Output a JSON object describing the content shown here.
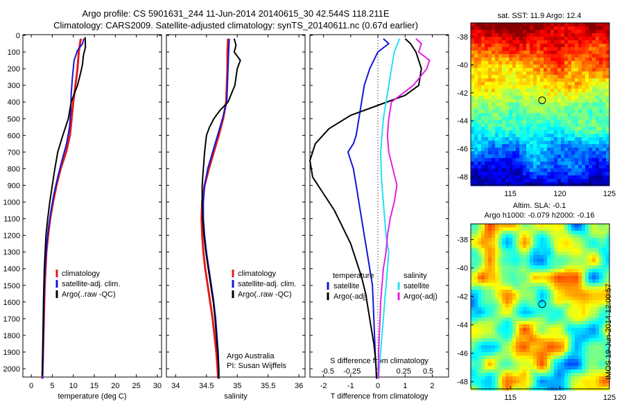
{
  "titles": {
    "line1": "Argo profile: CS 5901631_244 11-Jun-2014 20140615_30 42.544S 118.211E",
    "line2": "Climatology: CARS2009. Satellite-adjusted climatology: synTS_20140611.nc (0.67d earlier)"
  },
  "side_stamp": "IMOS 19-Jun-2014 12:00:57",
  "colors": {
    "red": "#e41a1c",
    "blue": "#1414d8",
    "black": "#000000",
    "cyan": "#22e0f0",
    "magenta": "#e020e0"
  },
  "chart_data": [
    {
      "type": "line",
      "panel": "temperature",
      "xlabel": "temperature (deg C)",
      "ylabel": "",
      "xlim": [
        -2,
        31
      ],
      "ylim": [
        2080,
        0
      ],
      "xticks": [
        0,
        5,
        10,
        15,
        20,
        25,
        30
      ],
      "yticks": [
        0,
        100,
        200,
        300,
        400,
        500,
        600,
        700,
        800,
        900,
        1000,
        1100,
        1200,
        1300,
        1400,
        1500,
        1600,
        1700,
        1800,
        1900,
        2000
      ],
      "legend": [
        "climatology",
        "satellite-adj. clim.",
        "Argo(..raw -QC)"
      ],
      "series": [
        {
          "name": "climatology",
          "color": "red",
          "points": [
            [
              11.8,
              20
            ],
            [
              11.6,
              50
            ],
            [
              11.3,
              100
            ],
            [
              11.0,
              200
            ],
            [
              10.5,
              300
            ],
            [
              10.0,
              400
            ],
            [
              9.6,
              500
            ],
            [
              9.2,
              600
            ],
            [
              8.3,
              700
            ],
            [
              7.0,
              800
            ],
            [
              6.0,
              900
            ],
            [
              5.2,
              1000
            ],
            [
              4.5,
              1100
            ],
            [
              4.0,
              1200
            ],
            [
              3.6,
              1300
            ],
            [
              3.4,
              1400
            ],
            [
              3.2,
              1500
            ],
            [
              3.1,
              1600
            ],
            [
              3.0,
              1700
            ],
            [
              2.9,
              1800
            ],
            [
              2.8,
              1900
            ],
            [
              2.7,
              2000
            ],
            [
              2.6,
              2060
            ]
          ]
        },
        {
          "name": "satellite-adj. clim.",
          "color": "blue",
          "points": [
            [
              12.5,
              20
            ],
            [
              12.2,
              50
            ],
            [
              11.0,
              90
            ],
            [
              10.2,
              150
            ],
            [
              9.8,
              250
            ],
            [
              9.5,
              350
            ],
            [
              9.4,
              450
            ],
            [
              9.1,
              550
            ],
            [
              8.4,
              650
            ],
            [
              7.3,
              750
            ],
            [
              6.3,
              850
            ],
            [
              5.4,
              950
            ],
            [
              4.7,
              1050
            ],
            [
              4.1,
              1150
            ],
            [
              3.7,
              1250
            ],
            [
              3.4,
              1350
            ],
            [
              3.2,
              1450
            ],
            [
              3.0,
              1600
            ],
            [
              2.9,
              1750
            ],
            [
              2.8,
              1900
            ],
            [
              2.7,
              2060
            ]
          ]
        },
        {
          "name": "Argo(..raw -QC)",
          "color": "black",
          "points": [
            [
              12.8,
              10
            ],
            [
              12.9,
              70
            ],
            [
              12.4,
              120
            ],
            [
              12.2,
              170
            ],
            [
              11.8,
              220
            ],
            [
              11.0,
              300
            ],
            [
              9.5,
              400
            ],
            [
              8.8,
              500
            ],
            [
              7.5,
              600
            ],
            [
              6.3,
              700
            ],
            [
              5.6,
              800
            ],
            [
              5.0,
              900
            ],
            [
              4.4,
              1000
            ],
            [
              3.9,
              1100
            ],
            [
              3.5,
              1200
            ],
            [
              3.3,
              1300
            ],
            [
              3.1,
              1400
            ],
            [
              3.0,
              1500
            ],
            [
              2.9,
              1600
            ],
            [
              2.8,
              1750
            ],
            [
              2.7,
              1900
            ],
            [
              2.6,
              2040
            ]
          ]
        }
      ]
    },
    {
      "type": "line",
      "panel": "salinity",
      "xlabel": "salinity",
      "ylabel": "",
      "xlim": [
        33.85,
        36.1
      ],
      "ylim": [
        2080,
        0
      ],
      "xticks": [
        34,
        34.5,
        35,
        35.5,
        36
      ],
      "legend": [
        "climatology",
        "satellite-adj. clim.",
        "Argo(..raw -QC)"
      ],
      "annotations": [
        "Argo Australia",
        "PI: Susan Wijffels"
      ],
      "series": [
        {
          "name": "climatology",
          "color": "red",
          "points": [
            [
              34.85,
              20
            ],
            [
              34.84,
              100
            ],
            [
              34.84,
              200
            ],
            [
              34.83,
              300
            ],
            [
              34.82,
              400
            ],
            [
              34.77,
              500
            ],
            [
              34.7,
              600
            ],
            [
              34.62,
              700
            ],
            [
              34.54,
              800
            ],
            [
              34.47,
              900
            ],
            [
              34.43,
              1000
            ],
            [
              34.42,
              1100
            ],
            [
              34.43,
              1200
            ],
            [
              34.45,
              1300
            ],
            [
              34.48,
              1400
            ],
            [
              34.52,
              1500
            ],
            [
              34.56,
              1600
            ],
            [
              34.6,
              1700
            ],
            [
              34.63,
              1800
            ],
            [
              34.66,
              1900
            ],
            [
              34.68,
              2000
            ],
            [
              34.69,
              2060
            ]
          ]
        },
        {
          "name": "satellite-adj. clim.",
          "color": "blue",
          "points": [
            [
              34.87,
              20
            ],
            [
              34.86,
              100
            ],
            [
              34.85,
              200
            ],
            [
              34.84,
              300
            ],
            [
              34.83,
              400
            ],
            [
              34.76,
              500
            ],
            [
              34.68,
              600
            ],
            [
              34.6,
              700
            ],
            [
              34.52,
              800
            ],
            [
              34.47,
              900
            ],
            [
              34.45,
              1000
            ],
            [
              34.45,
              1100
            ],
            [
              34.47,
              1200
            ],
            [
              34.5,
              1300
            ],
            [
              34.54,
              1400
            ],
            [
              34.58,
              1500
            ],
            [
              34.62,
              1600
            ],
            [
              34.65,
              1700
            ],
            [
              34.67,
              1800
            ],
            [
              34.69,
              1900
            ],
            [
              34.7,
              2000
            ],
            [
              34.7,
              2060
            ]
          ]
        },
        {
          "name": "Argo(..raw -QC)",
          "color": "black",
          "points": [
            [
              34.95,
              20
            ],
            [
              34.98,
              60
            ],
            [
              34.95,
              100
            ],
            [
              35.05,
              150
            ],
            [
              35.0,
              200
            ],
            [
              34.96,
              300
            ],
            [
              34.85,
              400
            ],
            [
              34.72,
              450
            ],
            [
              34.62,
              500
            ],
            [
              34.55,
              550
            ],
            [
              34.5,
              600
            ],
            [
              34.47,
              700
            ],
            [
              34.45,
              800
            ],
            [
              34.43,
              900
            ],
            [
              34.43,
              1000
            ],
            [
              34.44,
              1100
            ],
            [
              34.46,
              1200
            ],
            [
              34.49,
              1300
            ],
            [
              34.53,
              1400
            ],
            [
              34.57,
              1500
            ],
            [
              34.61,
              1600
            ],
            [
              34.64,
              1700
            ],
            [
              34.66,
              1800
            ],
            [
              34.68,
              1900
            ],
            [
              34.7,
              2000
            ],
            [
              34.7,
              2060
            ]
          ]
        }
      ]
    },
    {
      "type": "line",
      "panel": "difference",
      "xlabel": "T difference from climatology",
      "xlabel_top": "S difference from climatology",
      "xlim": [
        -2.5,
        2.6
      ],
      "ylim": [
        2080,
        0
      ],
      "xticks": [
        -2,
        -1,
        0,
        1,
        2
      ],
      "xticks_s": [
        -0.5,
        -0.25,
        0,
        0.25,
        0.5
      ],
      "legend_left": [
        "temperature",
        "satellite",
        "Argo(-adj)"
      ],
      "legend_right": [
        "salinity",
        "satellite",
        "Argo(-adj)"
      ],
      "series": [
        {
          "name": "temperature satellite",
          "color": "blue",
          "points": [
            [
              0.2,
              20
            ],
            [
              0.4,
              50
            ],
            [
              0.0,
              100
            ],
            [
              -0.3,
              200
            ],
            [
              -0.5,
              300
            ],
            [
              -0.6,
              400
            ],
            [
              -0.7,
              500
            ],
            [
              -0.8,
              600
            ],
            [
              -0.9,
              650
            ],
            [
              -1.1,
              700
            ],
            [
              -1.0,
              750
            ],
            [
              -0.9,
              800
            ],
            [
              -0.8,
              900
            ],
            [
              -0.7,
              1000
            ],
            [
              -0.6,
              1100
            ],
            [
              -0.5,
              1200
            ],
            [
              -0.4,
              1300
            ],
            [
              -0.3,
              1400
            ],
            [
              -0.2,
              1500
            ],
            [
              -0.15,
              1700
            ],
            [
              -0.1,
              1900
            ],
            [
              -0.05,
              2060
            ]
          ]
        },
        {
          "name": "temperature Argo(-adj)",
          "color": "black",
          "points": [
            [
              1.0,
              20
            ],
            [
              1.2,
              50
            ],
            [
              1.4,
              100
            ],
            [
              1.6,
              200
            ],
            [
              1.5,
              300
            ],
            [
              1.0,
              360
            ],
            [
              0.0,
              420
            ],
            [
              -1.0,
              480
            ],
            [
              -1.8,
              560
            ],
            [
              -2.3,
              650
            ],
            [
              -2.5,
              750
            ],
            [
              -2.4,
              850
            ],
            [
              -2.0,
              950
            ],
            [
              -1.6,
              1050
            ],
            [
              -1.3,
              1150
            ],
            [
              -1.0,
              1250
            ],
            [
              -0.8,
              1350
            ],
            [
              -0.6,
              1450
            ],
            [
              -0.45,
              1550
            ],
            [
              -0.35,
              1650
            ],
            [
              -0.25,
              1750
            ],
            [
              -0.15,
              1850
            ],
            [
              -0.08,
              1950
            ],
            [
              -0.05,
              2060
            ]
          ]
        },
        {
          "name": "salinity satellite",
          "color": "cyan",
          "points": [
            [
              0.8,
              20
            ],
            [
              0.6,
              100
            ],
            [
              0.5,
              200
            ],
            [
              0.4,
              300
            ],
            [
              0.3,
              400
            ],
            [
              0.2,
              500
            ],
            [
              0.15,
              600
            ],
            [
              0.1,
              700
            ],
            [
              0.12,
              800
            ],
            [
              0.15,
              900
            ],
            [
              0.2,
              1000
            ],
            [
              0.25,
              1100
            ],
            [
              0.3,
              1200
            ],
            [
              0.4,
              1300
            ],
            [
              0.35,
              1400
            ],
            [
              0.3,
              1500
            ],
            [
              0.25,
              1600
            ],
            [
              0.2,
              1700
            ],
            [
              0.15,
              1800
            ],
            [
              0.1,
              1900
            ],
            [
              0.05,
              2000
            ],
            [
              0.02,
              2060
            ]
          ]
        },
        {
          "name": "salinity Argo(-adj)",
          "color": "magenta",
          "points": [
            [
              1.4,
              20
            ],
            [
              1.6,
              50
            ],
            [
              1.5,
              100
            ],
            [
              1.9,
              150
            ],
            [
              1.8,
              200
            ],
            [
              1.3,
              300
            ],
            [
              0.5,
              400
            ],
            [
              0.4,
              500
            ],
            [
              0.35,
              600
            ],
            [
              0.4,
              700
            ],
            [
              0.55,
              800
            ],
            [
              0.7,
              900
            ],
            [
              0.6,
              1000
            ],
            [
              0.45,
              1100
            ],
            [
              0.35,
              1200
            ],
            [
              0.3,
              1300
            ],
            [
              0.2,
              1400
            ],
            [
              0.15,
              1500
            ],
            [
              0.1,
              1600
            ],
            [
              0.08,
              1700
            ],
            [
              0.05,
              1800
            ],
            [
              0.03,
              1900
            ],
            [
              0.02,
              2060
            ]
          ]
        }
      ]
    },
    {
      "type": "heatmap",
      "panel": "sst-map",
      "title": "sat. SST: 11.9  Argo: 12.4",
      "xlim": [
        111,
        125
      ],
      "ylim": [
        -48.6,
        -37
      ],
      "xticks": [
        115,
        120,
        125
      ],
      "yticks": [
        -38,
        -40,
        -42,
        -44,
        -46,
        -48
      ],
      "marker": {
        "lon": 118.2,
        "lat": -42.54
      }
    },
    {
      "type": "heatmap",
      "panel": "sla-map",
      "title_line1": "Altim. SLA: -0.1",
      "title_line2": "Argo h1000: -0.079  h2000: -0.16",
      "xlim": [
        111,
        125
      ],
      "ylim": [
        -48.5,
        -36.9
      ],
      "xticks": [
        115,
        120,
        125
      ],
      "yticks": [
        -38,
        -40,
        -42,
        -44,
        -46,
        -48
      ],
      "marker": {
        "lon": 118.2,
        "lat": -42.54
      }
    }
  ]
}
